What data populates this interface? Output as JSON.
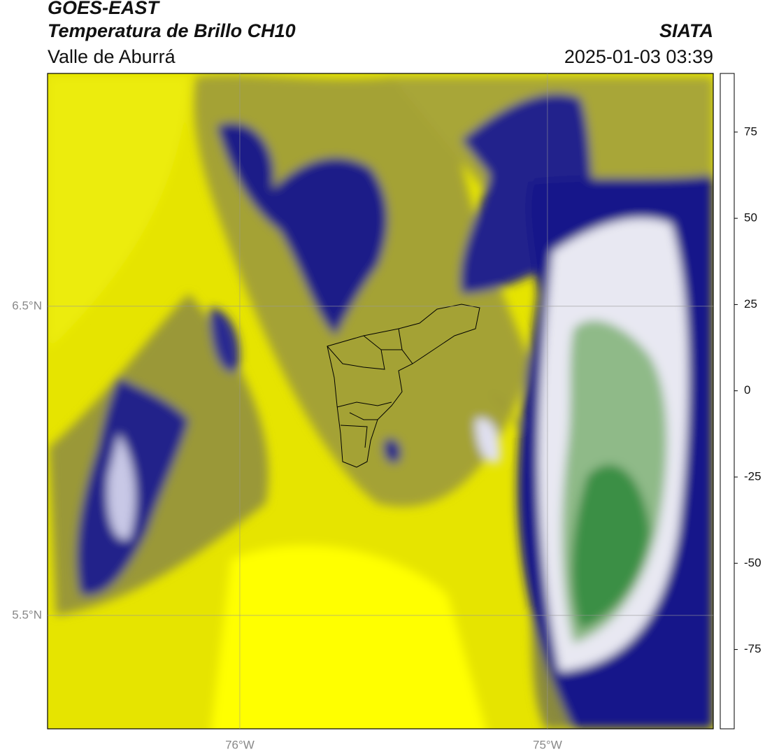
{
  "header": {
    "satellite": "GOES-EAST",
    "product": "Temperatura de Brillo CH10",
    "region": "Valle de Aburrá",
    "source": "SIATA",
    "datetime": "2025-01-03 03:39"
  },
  "map": {
    "xlim": [
      -76.625,
      -74.461
    ],
    "ylim": [
      5.133,
      7.253
    ],
    "xticks": [
      {
        "value": -76,
        "label": "76°W"
      },
      {
        "value": -75,
        "label": "75°W"
      }
    ],
    "yticks": [
      {
        "value": 6.5,
        "label": "6.5°N"
      },
      {
        "value": 5.5,
        "label": "5.5°N"
      }
    ],
    "grid": true
  },
  "colorbar": {
    "lim": [
      -98,
      92
    ],
    "ticks": [
      75,
      50,
      25,
      0,
      -25,
      -50,
      -75
    ],
    "stops": [
      {
        "value": -98,
        "color": "#ffffff"
      },
      {
        "value": -93.5,
        "color": "#ffffff"
      },
      {
        "value": -93.5,
        "color": "#00e8d8"
      },
      {
        "value": -85,
        "color": "#25b89e"
      },
      {
        "value": -75,
        "color": "#2e9a58"
      },
      {
        "value": -63,
        "color": "#4a9640"
      },
      {
        "value": -57,
        "color": "#c8dcc8"
      },
      {
        "value": -50,
        "color": "#ffffff"
      },
      {
        "value": -40,
        "color": "#a0a0d0"
      },
      {
        "value": -31,
        "color": "#303090"
      },
      {
        "value": -27,
        "color": "#000080"
      },
      {
        "value": -22,
        "color": "#5a5a48"
      },
      {
        "value": -15,
        "color": "#e6e600"
      },
      {
        "value": -10,
        "color": "#ffff00"
      },
      {
        "value": -4,
        "color": "#ffa000"
      },
      {
        "value": 8,
        "color": "#ff1000"
      },
      {
        "value": 8,
        "color": "#000000"
      },
      {
        "value": 92,
        "color": "#000000"
      }
    ]
  }
}
